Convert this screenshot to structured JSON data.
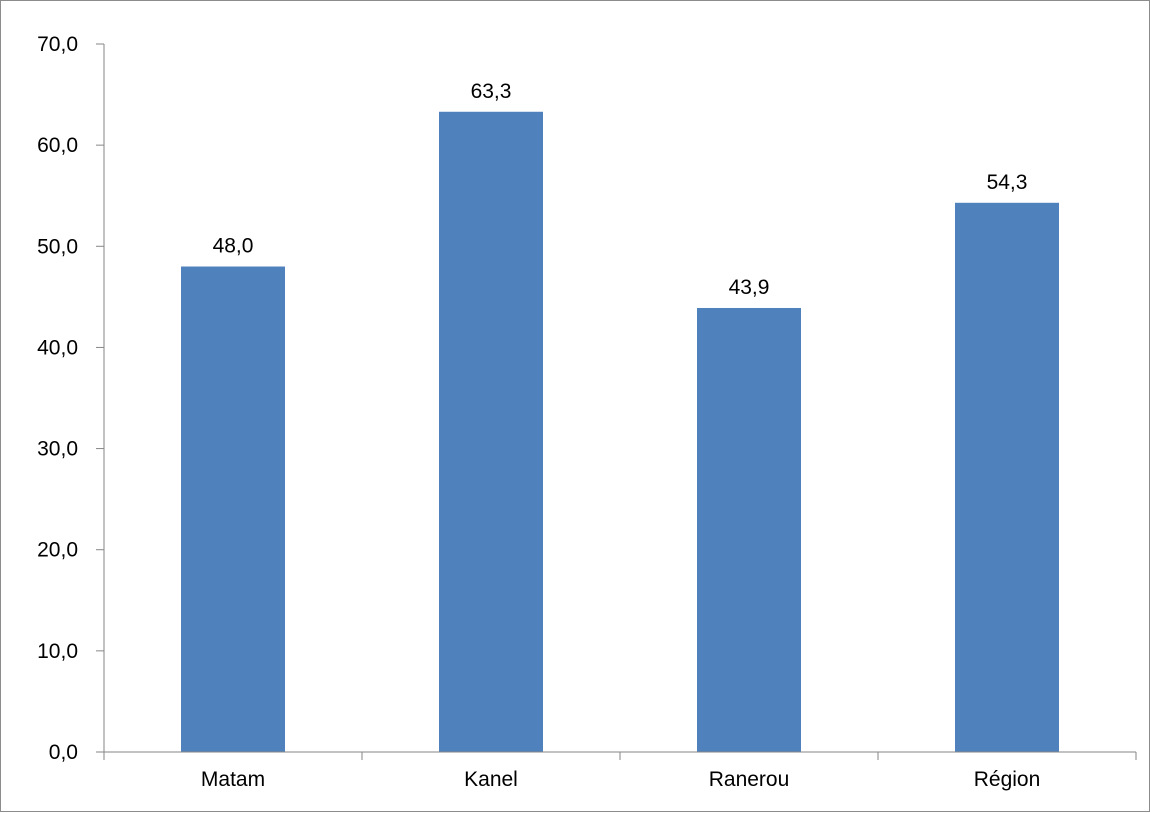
{
  "chart_data": {
    "type": "bar",
    "title": "",
    "xlabel": "",
    "ylabel": "",
    "categories": [
      "Matam",
      "Kanel",
      "Ranerou",
      "Région"
    ],
    "values": [
      48.0,
      63.3,
      43.9,
      54.3
    ],
    "value_labels": [
      "48,0",
      "63,3",
      "43,9",
      "54,3"
    ],
    "ylim": [
      0,
      70
    ],
    "yticks": [
      0,
      10,
      20,
      30,
      40,
      50,
      60,
      70
    ],
    "ytick_labels": [
      "0,0",
      "10,0",
      "20,0",
      "30,0",
      "40,0",
      "50,0",
      "60,0",
      "70,0"
    ],
    "grid": false,
    "legend": "none",
    "bar_color": "#4f81bd",
    "axis_color": "#868686"
  }
}
